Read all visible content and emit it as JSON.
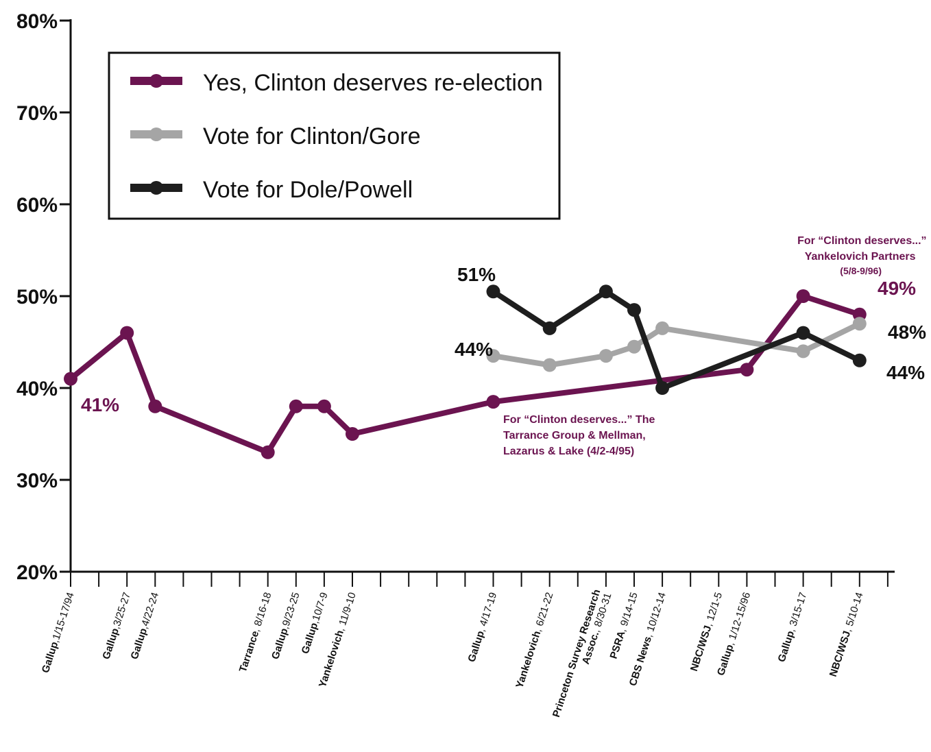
{
  "chart_data": {
    "type": "line",
    "title": "",
    "xlabel": "",
    "ylabel": "",
    "ylim": [
      20,
      80
    ],
    "yticks": [
      "80%",
      "70%",
      "60%",
      "50%",
      "40%",
      "30%",
      "20%"
    ],
    "grid": false,
    "legend_position": "top-left",
    "x_labels": [
      {
        "index": 0,
        "org": "Gallup",
        "date": ",1/15-17/94"
      },
      {
        "index": 2,
        "org": "Gallup",
        "date": ",3/25-27"
      },
      {
        "index": 3,
        "org": "Gallup",
        "date": ",4/22-24"
      },
      {
        "index": 7,
        "org": "Tarrance",
        "date": ", 8/16-18"
      },
      {
        "index": 8,
        "org": "Gallup",
        "date": ",9/23-25"
      },
      {
        "index": 9,
        "org": "Gallup",
        "date": ",10/7-9"
      },
      {
        "index": 10,
        "org": "Yankelovich",
        "date": ", 11/9-10"
      },
      {
        "index": 15,
        "org": "Gallup",
        "date": ", 4/17-19"
      },
      {
        "index": 17,
        "org": "Yankelovich",
        "date": ", 6/21-22"
      },
      {
        "index": 19,
        "org": "Princeton Survey Research",
        "org2": "Assoc.",
        "date": ", 8/30-31"
      },
      {
        "index": 20,
        "org": "PSRA",
        "date": ", 9/14-15"
      },
      {
        "index": 21,
        "org": "CBS News",
        "date": ", 10/12-14"
      },
      {
        "index": 23,
        "org": "NBC/WSJ",
        "date": ", 12/1-5"
      },
      {
        "index": 24,
        "org": "Gallup",
        "date": ", 1/12-15/96"
      },
      {
        "index": 26,
        "org": "Gallup",
        "date": ", 3/15-17"
      },
      {
        "index": 28,
        "org": "NBC/WSJ",
        "date": ", 5/10-14"
      }
    ],
    "series": [
      {
        "name": "Yes, Clinton deserves re-election",
        "color": "#6b1450",
        "points": [
          [
            0,
            41
          ],
          [
            2,
            46
          ],
          [
            3,
            38
          ],
          [
            7,
            33
          ],
          [
            8,
            38
          ],
          [
            9,
            38
          ],
          [
            10,
            35
          ],
          [
            15,
            38.5
          ],
          [
            24,
            42
          ],
          [
            26,
            50
          ],
          [
            28,
            48
          ]
        ]
      },
      {
        "name": "Vote for Clinton/Gore",
        "color": "#a5a5a5",
        "points": [
          [
            15,
            43.5
          ],
          [
            17,
            42.5
          ],
          [
            19,
            43.5
          ],
          [
            20,
            44.5
          ],
          [
            21,
            46.5
          ],
          [
            26,
            44
          ],
          [
            28,
            47
          ]
        ]
      },
      {
        "name": "Vote for Dole/Powell",
        "color": "#1e1e1e",
        "points": [
          [
            15,
            50.5
          ],
          [
            17,
            46.5
          ],
          [
            19,
            50.5
          ],
          [
            20,
            48.5
          ],
          [
            21,
            40
          ],
          [
            26,
            46
          ],
          [
            28,
            43
          ]
        ]
      }
    ],
    "data_labels": [
      {
        "text": "41%",
        "color": "#6b1450"
      },
      {
        "text": "51%",
        "color": "#111111"
      },
      {
        "text": "44%",
        "color": "#111111"
      },
      {
        "text": "49%",
        "color": "#6b1450"
      },
      {
        "text": "48%",
        "color": "#111111"
      },
      {
        "text": "44%",
        "color": "#111111"
      }
    ],
    "annotations": [
      {
        "lines": [
          "For “Clinton deserves...”",
          "Yankelovich Partners",
          "(5/8-9/96)"
        ]
      },
      {
        "lines": [
          "For “Clinton deserves...” The",
          "Tarrance Group & Mellman,",
          "Lazarus & Lake (4/2-4/95)"
        ]
      }
    ]
  }
}
